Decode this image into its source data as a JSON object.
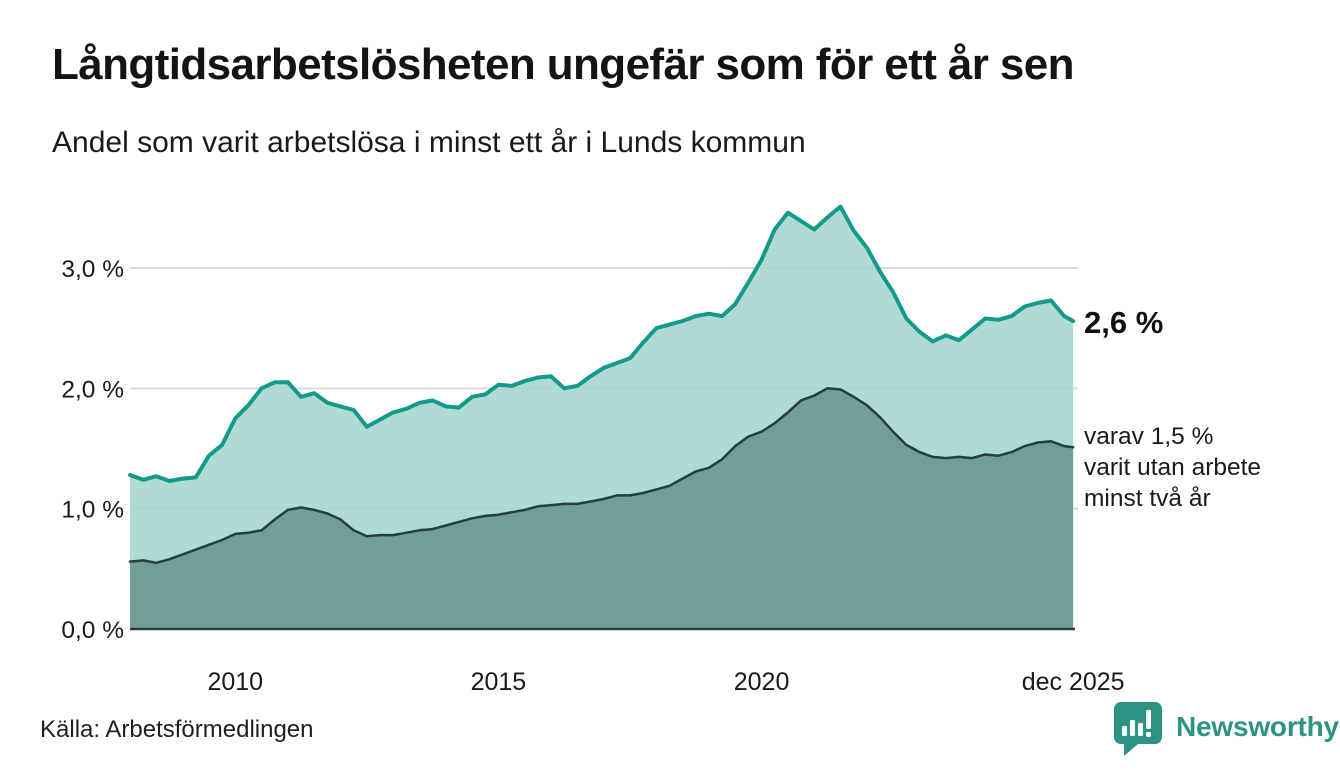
{
  "header": {
    "title": "Långtidsarbetslösheten ungefär som för ett år sen",
    "subtitle": "Andel som varit arbetslösa i minst ett år i Lunds kommun"
  },
  "annotations": {
    "total_end_label": "2,6 %",
    "subset_end_label": "varav 1,5 %\nvarit utan arbete\nminst två år"
  },
  "footer": {
    "source": "Källa: Arbetsförmedlingen",
    "brand": "Newsworthy"
  },
  "colors": {
    "total_line": "#149a8a",
    "total_fill": "#a5d5ce",
    "subset_line": "#24403c",
    "subset_fill": "#719e96",
    "grid": "#d9d9d9",
    "axis_text": "#1a1a1a",
    "brand_teal": "#2e9286"
  },
  "chart_data": {
    "type": "area",
    "title": "Långtidsarbetslösheten ungefär som för ett år sen",
    "subtitle": "Andel som varit arbetslösa i minst ett år i Lunds kommun",
    "unit": "%",
    "x_unit": "decimal year (quarterly estimates, Jan 2008 – Dec 2025)",
    "xlim": [
      2008,
      2025.92
    ],
    "ylim": [
      0,
      3.6
    ],
    "grid": "horizontal",
    "legend": "none (direct end-of-line labels)",
    "x": [
      2008.0,
      2008.25,
      2008.5,
      2008.75,
      2009.0,
      2009.25,
      2009.5,
      2009.75,
      2010.0,
      2010.25,
      2010.5,
      2010.75,
      2011.0,
      2011.25,
      2011.5,
      2011.75,
      2012.0,
      2012.25,
      2012.5,
      2012.75,
      2013.0,
      2013.25,
      2013.5,
      2013.75,
      2014.0,
      2014.25,
      2014.5,
      2014.75,
      2015.0,
      2015.25,
      2015.5,
      2015.75,
      2016.0,
      2016.25,
      2016.5,
      2016.75,
      2017.0,
      2017.25,
      2017.5,
      2017.75,
      2018.0,
      2018.25,
      2018.5,
      2018.75,
      2019.0,
      2019.25,
      2019.5,
      2019.75,
      2020.0,
      2020.25,
      2020.5,
      2020.75,
      2021.0,
      2021.25,
      2021.5,
      2021.75,
      2022.0,
      2022.25,
      2022.5,
      2022.75,
      2023.0,
      2023.25,
      2023.5,
      2023.75,
      2024.0,
      2024.25,
      2024.5,
      2024.75,
      2025.0,
      2025.25,
      2025.5,
      2025.75,
      2025.92
    ],
    "series": [
      {
        "name": "Arbetslösa minst ett år",
        "end_label": "2,6 %",
        "end_value": 2.6,
        "values": [
          1.28,
          1.24,
          1.27,
          1.23,
          1.25,
          1.26,
          1.44,
          1.53,
          1.75,
          1.86,
          2.0,
          2.05,
          2.05,
          1.93,
          1.96,
          1.88,
          1.85,
          1.82,
          1.68,
          1.74,
          1.8,
          1.83,
          1.88,
          1.9,
          1.85,
          1.84,
          1.93,
          1.95,
          2.03,
          2.02,
          2.06,
          2.09,
          2.1,
          2.0,
          2.02,
          2.1,
          2.17,
          2.21,
          2.25,
          2.38,
          2.5,
          2.53,
          2.56,
          2.6,
          2.62,
          2.6,
          2.7,
          2.88,
          3.07,
          3.32,
          3.46,
          3.39,
          3.32,
          3.42,
          3.51,
          3.31,
          3.17,
          2.97,
          2.8,
          2.58,
          2.47,
          2.39,
          2.44,
          2.4,
          2.49,
          2.58,
          2.57,
          2.6,
          2.68,
          2.71,
          2.73,
          2.6,
          2.56
        ]
      },
      {
        "name": "varav utan arbete minst två år",
        "end_label": "varav 1,5 % varit utan arbete minst två år",
        "end_value": 1.5,
        "values": [
          0.56,
          0.57,
          0.55,
          0.58,
          0.62,
          0.66,
          0.7,
          0.74,
          0.79,
          0.8,
          0.82,
          0.91,
          0.99,
          1.01,
          0.99,
          0.96,
          0.91,
          0.82,
          0.77,
          0.78,
          0.78,
          0.8,
          0.82,
          0.83,
          0.86,
          0.89,
          0.92,
          0.94,
          0.95,
          0.97,
          0.99,
          1.02,
          1.03,
          1.04,
          1.04,
          1.06,
          1.08,
          1.11,
          1.11,
          1.13,
          1.16,
          1.19,
          1.25,
          1.31,
          1.34,
          1.41,
          1.52,
          1.6,
          1.64,
          1.71,
          1.8,
          1.9,
          1.94,
          2.0,
          1.99,
          1.93,
          1.86,
          1.76,
          1.64,
          1.53,
          1.47,
          1.43,
          1.42,
          1.43,
          1.42,
          1.45,
          1.44,
          1.47,
          1.52,
          1.55,
          1.56,
          1.52,
          1.51
        ]
      }
    ],
    "yticks": [
      {
        "v": 0,
        "label": "0,0 %"
      },
      {
        "v": 1,
        "label": "1,0 %"
      },
      {
        "v": 2,
        "label": "2,0 %"
      },
      {
        "v": 3,
        "label": "3,0 %"
      }
    ],
    "xticks": [
      {
        "v": 2010,
        "label": "2010"
      },
      {
        "v": 2015,
        "label": "2015"
      },
      {
        "v": 2020,
        "label": "2020"
      },
      {
        "v": 2025.92,
        "label": "dec 2025"
      }
    ]
  }
}
